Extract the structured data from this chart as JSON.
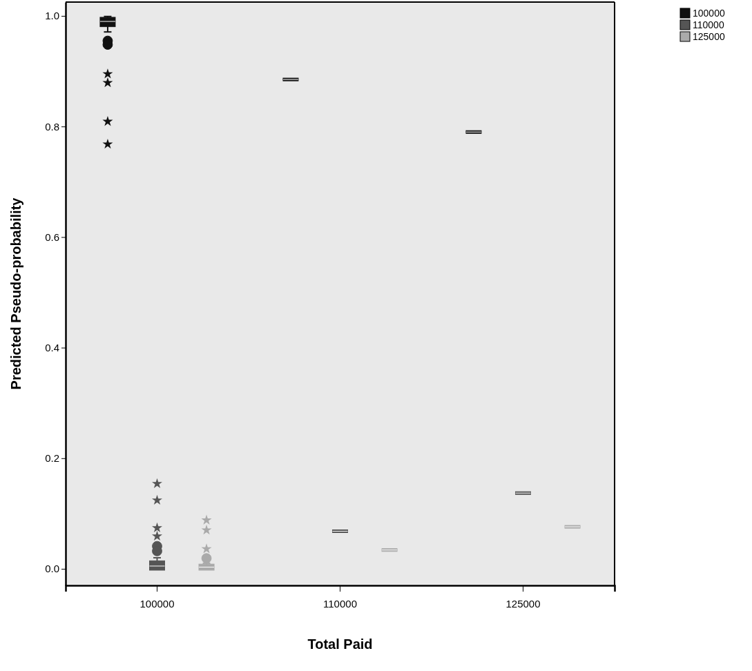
{
  "chart_data": {
    "type": "box",
    "xlabel": "Total Paid",
    "ylabel": "Predicted Pseudo-probability",
    "categories": [
      "100000",
      "110000",
      "125000"
    ],
    "ylim": [
      -0.03,
      1.025
    ],
    "yticks": [
      {
        "value": 0,
        "label": "0.0"
      },
      {
        "value": 0.2,
        "label": "0.2"
      },
      {
        "value": 0.4,
        "label": "0.4"
      },
      {
        "value": 0.6,
        "label": "0.6"
      },
      {
        "value": 0.8,
        "label": "0.8"
      },
      {
        "value": 1,
        "label": "1.0"
      }
    ],
    "grid": false,
    "legend": "top right",
    "series": [
      {
        "name": "100000",
        "color": "#111111",
        "boxes": [
          {
            "low": 0.971,
            "q1": 0.983,
            "median": 0.99,
            "q3": 0.995,
            "high": 0.999,
            "outliers": [
              0.955,
              0.948,
              0.895,
              0.879,
              0.809,
              0.768
            ]
          },
          {
            "low": 0.885,
            "q1": 0.885,
            "median": 0.885,
            "q3": 0.885,
            "high": 0.885
          },
          {
            "low": 0.79,
            "q1": 0.79,
            "median": 0.79,
            "q3": 0.79,
            "high": 0.79
          }
        ]
      },
      {
        "name": "110000",
        "color": "#555555",
        "boxes": [
          {
            "low": 0,
            "q1": 0,
            "median": 0.005,
            "q3": 0.012,
            "high": 0.02,
            "outliers": [
              0.041,
              0.032,
              0.154,
              0.124,
              0.074,
              0.059
            ]
          },
          {
            "low": 0.068,
            "q1": 0.068,
            "median": 0.068,
            "q3": 0.068,
            "high": 0.068
          },
          {
            "low": 0.137,
            "q1": 0.137,
            "median": 0.137,
            "q3": 0.137,
            "high": 0.137
          }
        ]
      },
      {
        "name": "125000",
        "color": "#aaaaaa",
        "boxes": [
          {
            "low": 0,
            "q1": 0,
            "median": 0.003,
            "q3": 0.006,
            "high": 0.01,
            "outliers": [
              0.019,
              0.036,
              0.07,
              0.088
            ]
          },
          {
            "low": 0.034,
            "q1": 0.034,
            "median": 0.034,
            "q3": 0.034,
            "high": 0.034
          },
          {
            "low": 0.076,
            "q1": 0.076,
            "median": 0.076,
            "q3": 0.076,
            "high": 0.076
          }
        ]
      }
    ]
  }
}
